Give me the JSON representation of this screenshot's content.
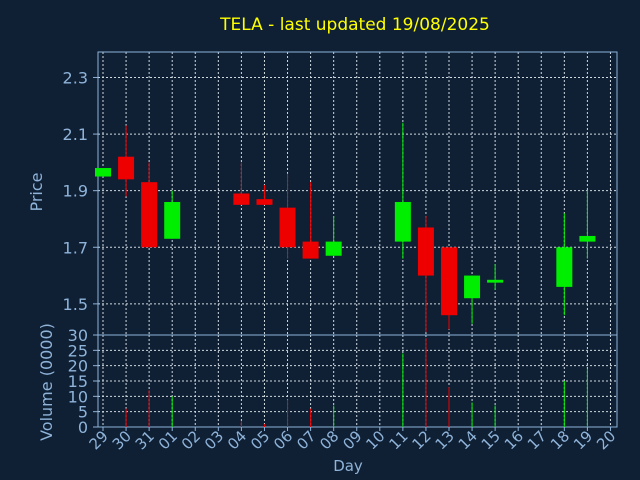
{
  "chart_data": {
    "type": "candlestick",
    "title": "TELA - last updated 19/08/2025",
    "xlabel": "Day",
    "price_panel": {
      "ylabel": "Price",
      "yticks": [
        "1.5",
        "1.7",
        "1.9",
        "2.1",
        "2.3"
      ],
      "ylim": [
        1.39,
        2.39
      ]
    },
    "volume_panel": {
      "ylabel": "Volume (0000)",
      "yticks": [
        "0",
        "5",
        "10",
        "15",
        "20",
        "25",
        "30"
      ],
      "ylim": [
        0,
        30
      ]
    },
    "x_tick_labels": [
      "29",
      "30",
      "31",
      "01",
      "02",
      "03",
      "04",
      "05",
      "06",
      "07",
      "08",
      "09",
      "10",
      "11",
      "12",
      "13",
      "14",
      "15",
      "16",
      "17",
      "18",
      "19",
      "20"
    ],
    "x_index_range": [
      0,
      22
    ],
    "grid": true,
    "colors": {
      "background": "#0f2035",
      "title": "#ffff00",
      "axis": "#8fb3d9",
      "tick_label": "#8fb3d9",
      "grid": "#d0d8e0",
      "up": "#00ee00",
      "down": "#ee0000"
    },
    "candles": [
      {
        "x": 0,
        "open": 1.95,
        "close": 1.98,
        "high": 1.98,
        "low": 1.95,
        "volume": 0
      },
      {
        "x": 1,
        "open": 2.02,
        "close": 1.94,
        "high": 2.13,
        "low": 1.88,
        "volume": 6
      },
      {
        "x": 2,
        "open": 1.93,
        "close": 1.7,
        "high": 2.0,
        "low": 1.7,
        "volume": 12
      },
      {
        "x": 3,
        "open": 1.73,
        "close": 1.86,
        "high": 1.9,
        "low": 1.73,
        "volume": 10
      },
      {
        "x": 6,
        "open": 1.89,
        "close": 1.85,
        "high": 2.0,
        "low": 1.85,
        "volume": 2
      },
      {
        "x": 7,
        "open": 1.87,
        "close": 1.85,
        "high": 1.92,
        "low": 1.85,
        "volume": 1
      },
      {
        "x": 8,
        "open": 1.84,
        "close": 1.7,
        "high": 1.96,
        "low": 1.66,
        "volume": 9
      },
      {
        "x": 9,
        "open": 1.72,
        "close": 1.66,
        "high": 1.93,
        "low": 1.66,
        "volume": 6
      },
      {
        "x": 10,
        "open": 1.67,
        "close": 1.72,
        "high": 1.81,
        "low": 1.67,
        "volume": 7
      },
      {
        "x": 13,
        "open": 1.72,
        "close": 1.86,
        "high": 2.14,
        "low": 1.66,
        "volume": 24
      },
      {
        "x": 14,
        "open": 1.77,
        "close": 1.6,
        "high": 1.81,
        "low": 1.4,
        "volume": 29
      },
      {
        "x": 15,
        "open": 1.7,
        "close": 1.46,
        "high": 1.7,
        "low": 1.41,
        "volume": 13
      },
      {
        "x": 16,
        "open": 1.52,
        "close": 1.6,
        "high": 1.6,
        "low": 1.43,
        "volume": 8
      },
      {
        "x": 17,
        "open": 1.575,
        "close": 1.585,
        "high": 1.64,
        "low": 1.55,
        "volume": 7
      },
      {
        "x": 20,
        "open": 1.56,
        "close": 1.7,
        "high": 1.82,
        "low": 1.46,
        "volume": 15
      },
      {
        "x": 21,
        "open": 1.72,
        "close": 1.74,
        "high": 1.9,
        "low": 1.66,
        "volume": 19
      }
    ]
  }
}
